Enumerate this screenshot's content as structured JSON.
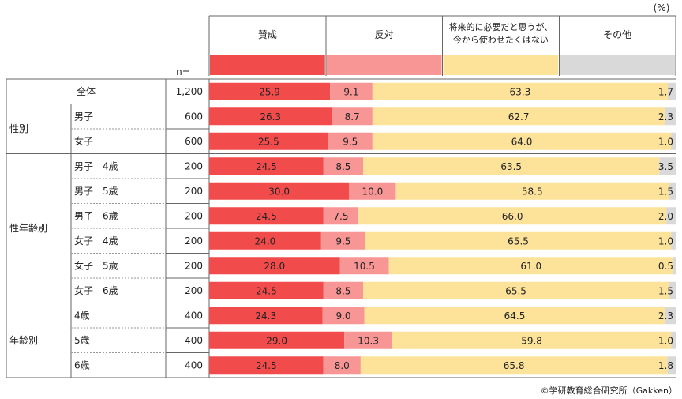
{
  "chart_data": {
    "type": "bar",
    "stacked": "100%",
    "unit_label": "(%)",
    "n_label": "n=",
    "series": [
      {
        "name": "賛成",
        "color": "#f24b4b"
      },
      {
        "name": "反対",
        "color": "#f89696"
      },
      {
        "name": "将来的に必要だと思うが、今から使わせたくはない",
        "name_lines": [
          "将来的に必要だと思うが、",
          "今から使わせたくはない"
        ],
        "color": "#fde29a"
      },
      {
        "name": "その他",
        "color": "#d9d9d9"
      }
    ],
    "rows": [
      {
        "group": "",
        "label": "全体",
        "n": "1,200",
        "values": [
          25.9,
          9.1,
          63.3,
          1.7
        ],
        "labels": [
          "25.9",
          "9.1",
          "63.3",
          "1.7"
        ]
      },
      {
        "group": "性別",
        "label": "男子",
        "n": "600",
        "values": [
          26.3,
          8.7,
          62.7,
          2.3
        ],
        "labels": [
          "26.3",
          "8.7",
          "62.7",
          "2.3"
        ]
      },
      {
        "group": "性別",
        "label": "女子",
        "n": "600",
        "values": [
          25.5,
          9.5,
          64.0,
          1.0
        ],
        "labels": [
          "25.5",
          "9.5",
          "64.0",
          "1.0"
        ]
      },
      {
        "group": "性年齢別",
        "label": "男子　4歳",
        "n": "200",
        "values": [
          24.5,
          8.5,
          63.5,
          3.5
        ],
        "labels": [
          "24.5",
          "8.5",
          "63.5",
          "3.5"
        ]
      },
      {
        "group": "性年齢別",
        "label": "男子　5歳",
        "n": "200",
        "values": [
          30.0,
          10.0,
          58.5,
          1.5
        ],
        "labels": [
          "30.0",
          "10.0",
          "58.5",
          "1.5"
        ]
      },
      {
        "group": "性年齢別",
        "label": "男子　6歳",
        "n": "200",
        "values": [
          24.5,
          7.5,
          66.0,
          2.0
        ],
        "labels": [
          "24.5",
          "7.5",
          "66.0",
          "2.0"
        ]
      },
      {
        "group": "性年齢別",
        "label": "女子　4歳",
        "n": "200",
        "values": [
          24.0,
          9.5,
          65.5,
          1.0
        ],
        "labels": [
          "24.0",
          "9.5",
          "65.5",
          "1.0"
        ]
      },
      {
        "group": "性年齢別",
        "label": "女子　5歳",
        "n": "200",
        "values": [
          28.0,
          10.5,
          61.0,
          0.5
        ],
        "labels": [
          "28.0",
          "10.5",
          "61.0",
          "0.5"
        ]
      },
      {
        "group": "性年齢別",
        "label": "女子　6歳",
        "n": "200",
        "values": [
          24.5,
          8.5,
          65.5,
          1.5
        ],
        "labels": [
          "24.5",
          "8.5",
          "65.5",
          "1.5"
        ]
      },
      {
        "group": "年齢別",
        "label": "4歳",
        "n": "400",
        "values": [
          24.3,
          9.0,
          64.5,
          2.3
        ],
        "labels": [
          "24.3",
          "9.0",
          "64.5",
          "2.3"
        ]
      },
      {
        "group": "年齢別",
        "label": "5歳",
        "n": "400",
        "values": [
          29.0,
          10.3,
          59.8,
          1.0
        ],
        "labels": [
          "29.0",
          "10.3",
          "59.8",
          "1.0"
        ]
      },
      {
        "group": "年齢別",
        "label": "6歳",
        "n": "400",
        "values": [
          24.5,
          8.0,
          65.8,
          1.8
        ],
        "labels": [
          "24.5",
          "8.0",
          "65.8",
          "1.8"
        ]
      }
    ],
    "groups": [
      "",
      "性別",
      "性年齢別",
      "年齢別"
    ],
    "source": "©学研教育総合研究所（Gakken）"
  }
}
